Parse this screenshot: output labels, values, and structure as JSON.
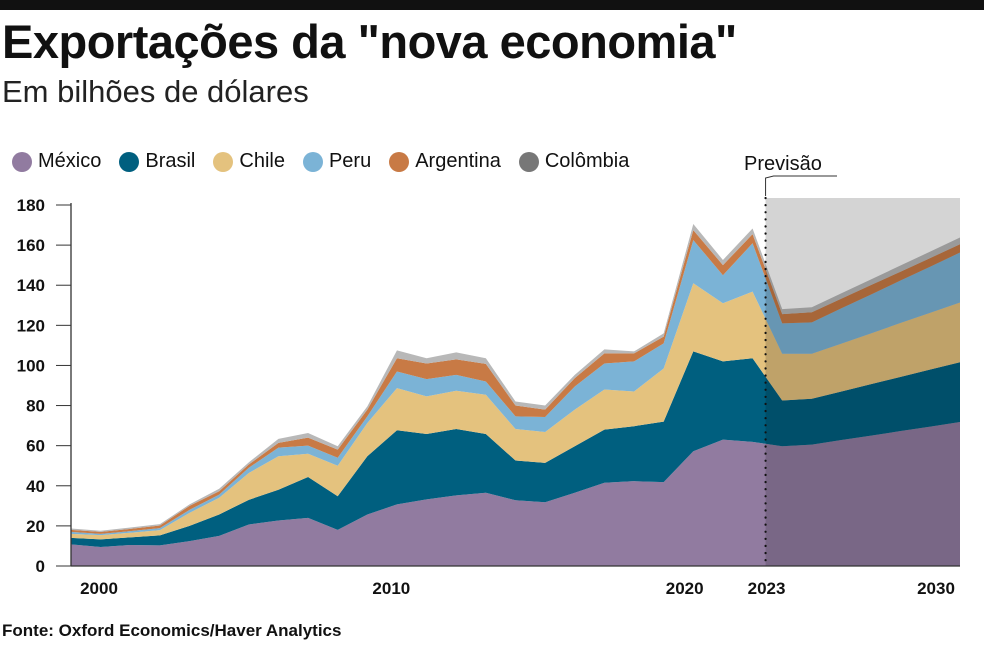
{
  "title": "Exportações da \"nova economia\"",
  "subtitle": "Em bilhões de dólares",
  "source": "Fonte: Oxford Economics/Haver Analytics",
  "chart_data": {
    "type": "area",
    "stacked": true,
    "title": "Exportações da \"nova economia\"",
    "subtitle": "Em bilhões de dólares",
    "xlabel": "",
    "ylabel": "",
    "ylim": [
      0,
      180
    ],
    "yticks": [
      0,
      20,
      40,
      60,
      80,
      100,
      120,
      140,
      160,
      180
    ],
    "xticks": [
      2000,
      2010,
      2020,
      2023,
      2030
    ],
    "legend_placement": "top",
    "forecast_label": "Previsão",
    "forecast_start": 2023,
    "x": [
      2000,
      2001,
      2002,
      2003,
      2004,
      2005,
      2006,
      2007,
      2008,
      2009,
      2010,
      2011,
      2012,
      2013,
      2014,
      2015,
      2016,
      2017,
      2018,
      2019,
      2020,
      2021,
      2022,
      2023,
      2024,
      2025,
      2026,
      2027,
      2028,
      2029,
      2030
    ],
    "series": [
      {
        "name": "México",
        "color": "#917ba0",
        "values": [
          10.8,
          9.5,
          10.5,
          10.3,
          12.4,
          15.0,
          20.7,
          22.7,
          24.0,
          18.0,
          25.7,
          30.7,
          33.2,
          35.2,
          36.5,
          32.8,
          31.8,
          36.5,
          41.5,
          42.3,
          41.8,
          57.2,
          63.0,
          61.9,
          59.7,
          60.5,
          62.8,
          65.0,
          67.3,
          69.5,
          71.8
        ]
      },
      {
        "name": "Brasil",
        "color": "#005f7f",
        "values": [
          3.2,
          3.8,
          3.8,
          5.0,
          7.6,
          10.7,
          12.3,
          15.3,
          20.4,
          16.8,
          29.0,
          37.0,
          32.6,
          33.1,
          29.3,
          19.8,
          19.6,
          23.2,
          26.5,
          27.4,
          30.2,
          49.8,
          39.0,
          41.7,
          22.8,
          22.9,
          24.2,
          25.7,
          27.0,
          28.5,
          29.8
        ]
      },
      {
        "name": "Chile",
        "color": "#e4c27e",
        "values": [
          2.0,
          2.1,
          2.3,
          2.6,
          6.5,
          8.3,
          13.4,
          16.7,
          11.6,
          15.2,
          16.6,
          21.0,
          18.8,
          19.1,
          19.6,
          15.7,
          15.4,
          18.3,
          20.0,
          17.3,
          26.5,
          34.0,
          29.0,
          33.2,
          23.3,
          22.4,
          23.9,
          25.3,
          26.9,
          28.3,
          29.8
        ]
      },
      {
        "name": "Peru",
        "color": "#7bb3d6",
        "values": [
          1.0,
          0.6,
          0.8,
          1.0,
          1.5,
          1.6,
          2.6,
          4.3,
          4.0,
          4.0,
          3.3,
          8.3,
          8.6,
          7.9,
          6.6,
          6.3,
          7.5,
          11.5,
          13.0,
          15.0,
          12.5,
          21.5,
          14.0,
          24.1,
          15.2,
          15.7,
          17.6,
          19.4,
          21.2,
          23.0,
          24.9
        ]
      },
      {
        "name": "Argentina",
        "color": "#c87a45",
        "values": [
          1.0,
          1.0,
          1.1,
          1.3,
          2.0,
          1.7,
          1.6,
          2.4,
          4.0,
          4.0,
          3.4,
          6.6,
          7.8,
          7.7,
          8.8,
          5.4,
          3.7,
          4.2,
          5.0,
          4.0,
          3.4,
          5.0,
          5.0,
          4.6,
          4.6,
          5.0,
          4.8,
          4.7,
          4.4,
          4.3,
          4.1
        ]
      },
      {
        "name": "Colômbia",
        "color": "#b8b8b8",
        "legend_color": "#777777",
        "values": [
          0.7,
          0.6,
          0.7,
          0.7,
          0.7,
          1.2,
          1.1,
          2.0,
          2.3,
          1.7,
          1.6,
          3.9,
          2.6,
          3.5,
          2.8,
          2.0,
          2.0,
          1.6,
          2.0,
          1.0,
          1.6,
          3.0,
          2.6,
          2.8,
          2.5,
          2.5,
          2.7,
          2.8,
          3.1,
          3.2,
          3.4
        ]
      }
    ]
  }
}
